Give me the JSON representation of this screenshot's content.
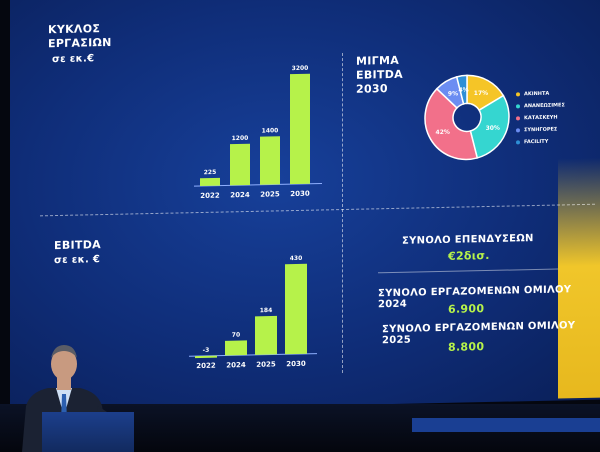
{
  "revenue": {
    "title_line1": "ΚΥΚΛΟΣ",
    "title_line2": "ΕΡΓΑΣΙΩΝ",
    "unit": "σε εκ.€"
  },
  "ebitda": {
    "title": "EBITDA",
    "unit": "σε εκ. €"
  },
  "mix": {
    "title_line1": "ΜΙΓΜΑ",
    "title_line2": "EBITDA",
    "title_line3": "2030"
  },
  "stats": {
    "investments_label": "ΣΥΝΟΛΟ ΕΠΕΝΔΥΣΕΩΝ",
    "investments_value": "€2δισ.",
    "employees_2024_label": "ΣΥΝΟΛΟ ΕΡΓΑΖΟΜΕΝΩΝ ΟΜΙΛΟΥ 2024",
    "employees_2024_value": "6.900",
    "employees_2025_label": "ΣΥΝΟΛΟ ΕΡΓΑΖΟΜΕΝΩΝ ΟΜΙΛΟΥ 2025",
    "employees_2025_value": "8.800"
  },
  "colors": {
    "bar": "#b6f24a",
    "axis": "#8fb0ff",
    "slices": [
      "#f5c527",
      "#35d6d0",
      "#f2708a",
      "#6b8df2",
      "#2e8fd6"
    ]
  },
  "chart_data": [
    {
      "type": "bar",
      "title": "ΚΥΚΛΟΣ ΕΡΓΑΣΙΩΝ",
      "ylabel": "σε εκ.€",
      "categories": [
        "2022",
        "2024",
        "2025",
        "2030"
      ],
      "values": [
        225,
        1200,
        1400,
        3200
      ],
      "labels": [
        "225",
        "1200",
        "1400",
        "3200"
      ],
      "ylim": [
        0,
        3200
      ]
    },
    {
      "type": "bar",
      "title": "EBITDA",
      "ylabel": "σε εκ. €",
      "categories": [
        "2022",
        "2024",
        "2025",
        "2030"
      ],
      "values": [
        -3,
        70,
        184,
        430
      ],
      "labels": [
        "-3",
        "70",
        "184",
        "430"
      ],
      "ylim": [
        0,
        430
      ]
    },
    {
      "type": "pie",
      "title": "ΜΙΓΜΑ EBITDA 2030",
      "categories": [
        "ΑΚΙΝΗΤΑ",
        "ΑΝΑΝΕΩΣΙΜΕΣ",
        "ΚΑΤΑΣΚΕΥΗ",
        "ΣΥΝΗΓΟΡΕΣ",
        "FACILITY"
      ],
      "values": [
        17,
        30,
        42,
        9,
        4
      ],
      "labels": [
        "17%",
        "30%",
        "42%",
        "9%",
        "4%"
      ]
    }
  ]
}
